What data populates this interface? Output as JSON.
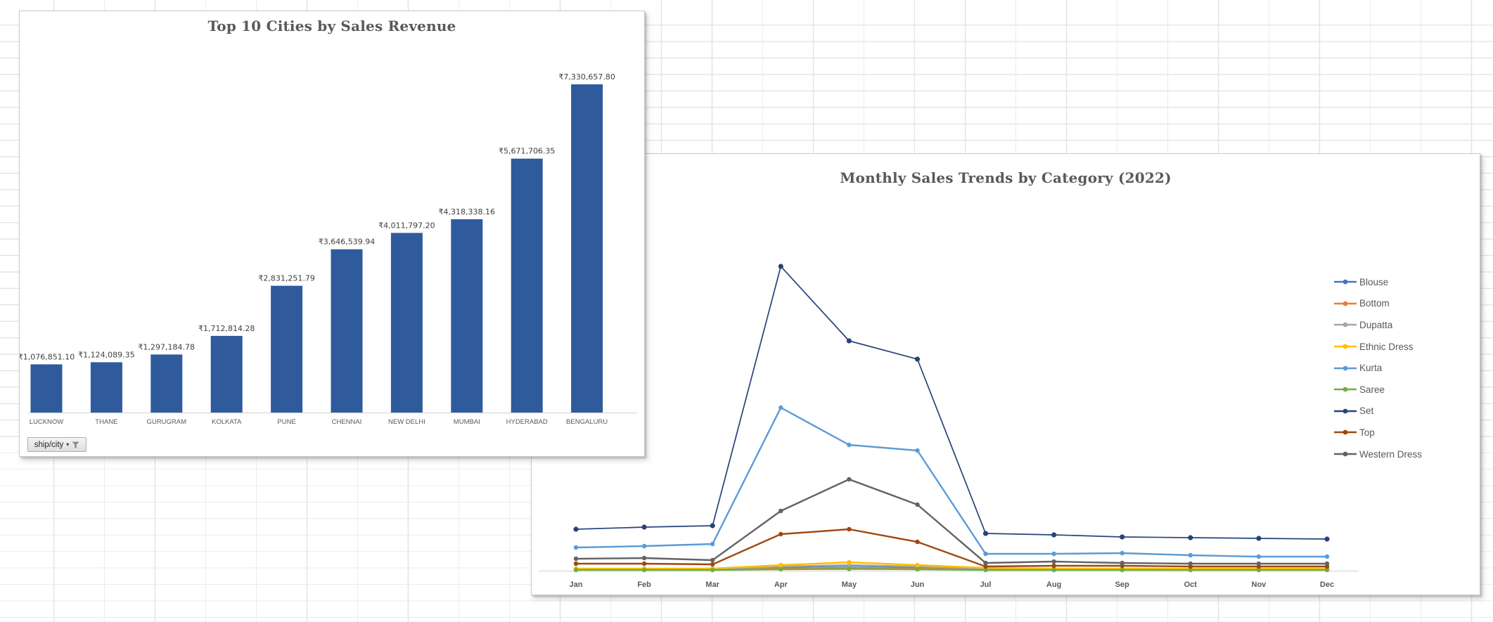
{
  "ui": {
    "bar_filter_button": "ship/city",
    "bar_filter_caret": "▾"
  },
  "chart_data": [
    {
      "type": "bar",
      "title": "Top 10 Cities by Sales Revenue",
      "categories": [
        "LUCKNOW",
        "THANE",
        "GURUGRAM",
        "KOLKATA",
        "PUNE",
        "CHENNAI",
        "NEW DELHI",
        "MUMBAI",
        "HYDERABAD",
        "BENGALURU"
      ],
      "values": [
        1076851.1,
        1124089.35,
        1297184.78,
        1712814.28,
        2831251.79,
        3646539.94,
        4011797.2,
        4318338.16,
        5671706.35,
        7330657.8
      ],
      "data_labels": [
        "₹1,076,851.10",
        "₹1,124,089.35",
        "₹1,297,184.78",
        "₹1,712,814.28",
        "₹2,831,251.79",
        "₹3,646,539.94",
        "₹4,011,797.20",
        "₹4,318,338.16",
        "₹5,671,706.35",
        "₹7,330,657.80"
      ],
      "xlabel": "",
      "ylabel": "",
      "y_axis_visible": false,
      "grid": false,
      "bar_color": "#2f5b9d",
      "pivot_filter_field": "ship/city"
    },
    {
      "type": "line",
      "title": "Monthly Sales Trends by Category (2022)",
      "x": [
        "Jan",
        "Feb",
        "Mar",
        "Apr",
        "May",
        "Jun",
        "Jul",
        "Aug",
        "Sep",
        "Oct",
        "Nov",
        "Dec"
      ],
      "series": [
        {
          "name": "Blouse",
          "color": "#4472C4",
          "values": [
            2,
            2,
            2,
            5,
            7,
            5,
            2,
            2,
            2,
            2,
            2,
            2
          ]
        },
        {
          "name": "Bottom",
          "color": "#ED7D31",
          "values": [
            1.5,
            1.5,
            1.5,
            3,
            4,
            3,
            1.5,
            1.5,
            1.5,
            1.5,
            1.5,
            1.5
          ]
        },
        {
          "name": "Dupatta",
          "color": "#A5A5A5",
          "values": [
            2.5,
            2.5,
            2,
            6,
            8,
            6,
            3,
            2.5,
            2.5,
            2,
            2,
            2
          ]
        },
        {
          "name": "Ethnic Dress",
          "color": "#FFC000",
          "values": [
            3,
            3,
            3,
            8,
            12,
            8,
            4,
            3,
            3,
            3,
            3,
            3
          ]
        },
        {
          "name": "Kurta",
          "color": "#5B9BD5",
          "values": [
            33,
            35,
            38,
            232,
            179,
            171,
            24,
            24,
            25,
            22,
            20,
            20
          ]
        },
        {
          "name": "Saree",
          "color": "#70AD47",
          "values": [
            1,
            1,
            1,
            2,
            2.5,
            2,
            1,
            1,
            1,
            1,
            1,
            1
          ]
        },
        {
          "name": "Set",
          "color": "#264478",
          "values": [
            59,
            62,
            64,
            433,
            327,
            301,
            53,
            51,
            48,
            47,
            46,
            45
          ]
        },
        {
          "name": "Top",
          "color": "#9E480E",
          "values": [
            10,
            10,
            9,
            52,
            59,
            41,
            6,
            7,
            7,
            6,
            6,
            6
          ]
        },
        {
          "name": "Western Dress",
          "color": "#636363",
          "values": [
            17,
            18,
            15,
            85,
            130,
            94,
            11,
            13,
            11,
            10,
            10,
            10
          ]
        }
      ],
      "units": "relative units (y-axis labels not shown in chart)",
      "ylim": [
        0,
        460
      ],
      "y_axis_visible": false,
      "grid": false,
      "legend_position": "right",
      "marker": "circle"
    }
  ]
}
